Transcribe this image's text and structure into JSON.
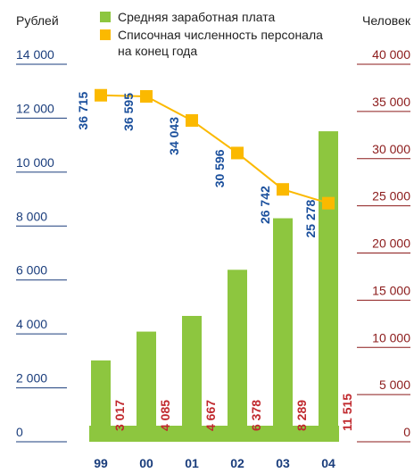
{
  "chart_data": {
    "type": "bar_line",
    "ylabel": "Рублей",
    "y2label": "Человек",
    "categories": [
      "99",
      "00",
      "01",
      "02",
      "03",
      "04"
    ],
    "series": [
      {
        "name": "Средняя заработная плата",
        "color": "#8dc63f",
        "type": "bar",
        "values": [
          3017,
          4085,
          4667,
          6378,
          8289,
          11515
        ],
        "value_labels": [
          "3 017",
          "4 085",
          "4 667",
          "6 378",
          "8 289",
          "11 515"
        ]
      },
      {
        "name": "Списочная численность персонала на конец года",
        "color": "#fbb900",
        "type": "line",
        "axis": "y2",
        "values": [
          36715,
          36595,
          34043,
          30596,
          26742,
          25278
        ],
        "value_labels": [
          "36 715",
          "36 595",
          "34 043",
          "30 596",
          "26 742",
          "25 278"
        ]
      }
    ],
    "ylim": [
      0,
      14000
    ],
    "yticks": [
      0,
      {
        "value": 2000,
        "label": "2 000"
      },
      {
        "value": 4000,
        "label": "4 000"
      },
      {
        "value": 6000,
        "label": "6 000"
      },
      {
        "value": 8000,
        "label": "8 000"
      },
      {
        "value": 10000,
        "label": "10 000"
      },
      {
        "value": 12000,
        "label": "12 000"
      },
      {
        "value": 14000,
        "label": "14 000"
      }
    ],
    "y2lim": [
      0,
      40000
    ],
    "y2ticks": [
      0,
      {
        "value": 5000,
        "label": "5 000"
      },
      {
        "value": 10000,
        "label": "10 000"
      },
      {
        "value": 15000,
        "label": "15 000"
      },
      {
        "value": 20000,
        "label": "20 000"
      },
      {
        "value": 25000,
        "label": "25 000"
      },
      {
        "value": 30000,
        "label": "30 000"
      },
      {
        "value": 35000,
        "label": "35 000"
      },
      {
        "value": 40000,
        "label": "40 000"
      }
    ]
  }
}
